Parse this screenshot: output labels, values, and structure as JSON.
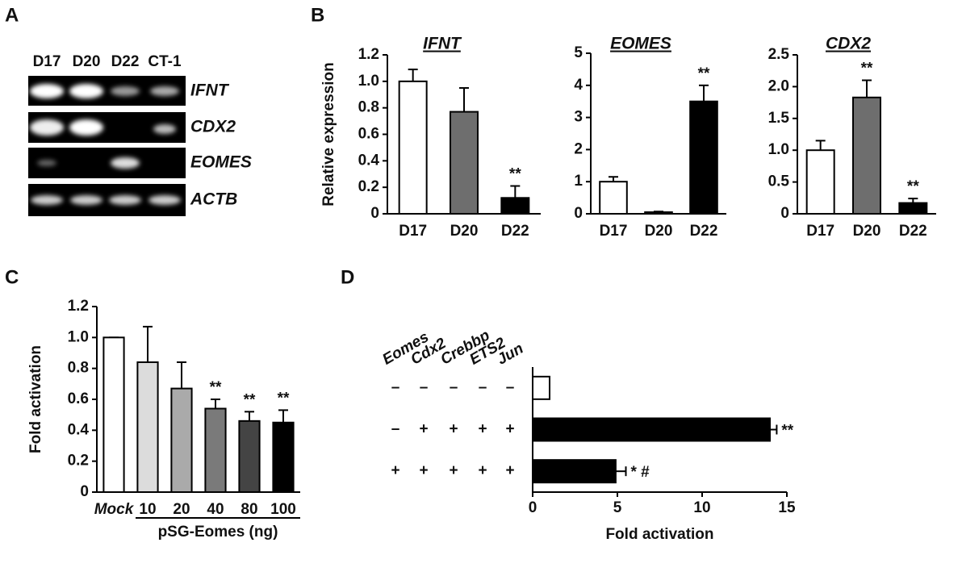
{
  "panel_labels": [
    "A",
    "B",
    "C",
    "D"
  ],
  "gel": {
    "lanes": [
      "D17",
      "D20",
      "D22",
      "CT-1"
    ],
    "genes": [
      "IFNT",
      "CDX2",
      "EOMES",
      "ACTB"
    ]
  },
  "chart_data": [
    {
      "type": "bar",
      "title": "IFNT",
      "y_label": "Relative expression",
      "categories": [
        "D17",
        "D20",
        "D22"
      ],
      "values": [
        1.0,
        0.77,
        0.12
      ],
      "errors": [
        0.09,
        0.18,
        0.09
      ],
      "colors": [
        "#ffffff",
        "#6e6e6e",
        "#000000"
      ],
      "annotations": [
        null,
        null,
        "**"
      ],
      "ylim": [
        0,
        1.2
      ],
      "yticks": [
        0,
        0.2,
        0.4,
        0.6,
        0.8,
        {
          "value": 1,
          "label": "1.0"
        },
        1.2
      ]
    },
    {
      "type": "bar",
      "title": "EOMES",
      "categories": [
        "D17",
        "D20",
        "D22"
      ],
      "values": [
        1.0,
        0.05,
        3.5
      ],
      "errors": [
        0.15,
        0.02,
        0.5
      ],
      "colors": [
        "#ffffff",
        "#6e6e6e",
        "#000000"
      ],
      "annotations": [
        null,
        null,
        "**"
      ],
      "ylim": [
        0,
        5
      ],
      "yticks": [
        0,
        1,
        2,
        3,
        4,
        5
      ]
    },
    {
      "type": "bar",
      "title": "CDX2",
      "categories": [
        "D17",
        "D20",
        "D22"
      ],
      "values": [
        1.0,
        1.83,
        0.17
      ],
      "errors": [
        0.15,
        0.27,
        0.07
      ],
      "colors": [
        "#ffffff",
        "#6e6e6e",
        "#000000"
      ],
      "annotations": [
        null,
        "**",
        "**"
      ],
      "ylim": [
        0,
        2.5
      ],
      "yticks": [
        0,
        0.5,
        {
          "value": 1,
          "label": "1.0"
        },
        1.5,
        {
          "value": 2,
          "label": "2.0"
        },
        2.5
      ]
    },
    {
      "type": "bar",
      "y_label": "Fold activation",
      "x_label": "pSG-Eomes (ng)",
      "categories": [
        "Mock",
        "10",
        "20",
        "40",
        "80",
        "100"
      ],
      "values": [
        1.0,
        0.84,
        0.67,
        0.54,
        0.46,
        0.45
      ],
      "errors": [
        0,
        0.23,
        0.17,
        0.06,
        0.06,
        0.08
      ],
      "colors": [
        "#ffffff",
        "#dcdcdc",
        "#aaaaaa",
        "#7a7a7a",
        "#444444",
        "#000000"
      ],
      "annotations": [
        null,
        null,
        null,
        "**",
        "**",
        "**"
      ],
      "ylim": [
        0,
        1.2
      ],
      "yticks": [
        0,
        0.2,
        0.4,
        0.6,
        0.8,
        {
          "value": 1,
          "label": "1.0"
        },
        1.2
      ]
    },
    {
      "type": "hbar",
      "x_label": "Fold activation",
      "factors": [
        "Eomes",
        "Cdx2",
        "Crebbp",
        "ETS2",
        "Jun"
      ],
      "conditions": [
        [
          "–",
          "–",
          "–",
          "–",
          "–"
        ],
        [
          "–",
          "+",
          "+",
          "+",
          "+"
        ],
        [
          "+",
          "+",
          "+",
          "+",
          "+"
        ]
      ],
      "values": [
        1,
        14,
        4.9
      ],
      "errors": [
        0,
        0.4,
        0.6
      ],
      "colors": [
        "#ffffff",
        "#000000",
        "#000000"
      ],
      "annotations": [
        null,
        "**",
        "* #"
      ],
      "xlim": [
        0,
        15
      ],
      "xticks": [
        0,
        5,
        10,
        15
      ]
    }
  ]
}
